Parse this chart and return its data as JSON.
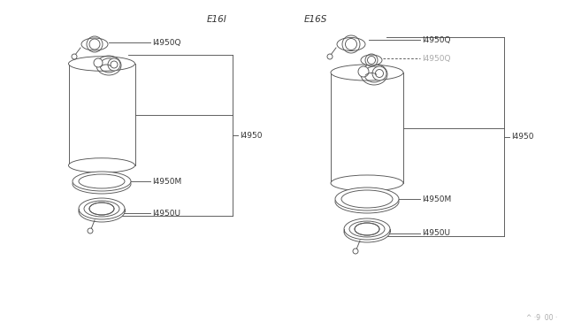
{
  "bg_color": "#ffffff",
  "line_color": "#555555",
  "text_color": "#333333",
  "title_e16i": "E16I",
  "title_e16s": "E16S",
  "watermark": "^ ·9  00 ·",
  "part_14950": "I4950",
  "part_14950Q": "I4950Q",
  "part_14950Q2": "I4950Q",
  "part_14950M": "I4950M",
  "part_14950U": "I4950U",
  "font_size_label": 6.5,
  "font_size_title": 7.5,
  "font_size_watermark": 5.5
}
